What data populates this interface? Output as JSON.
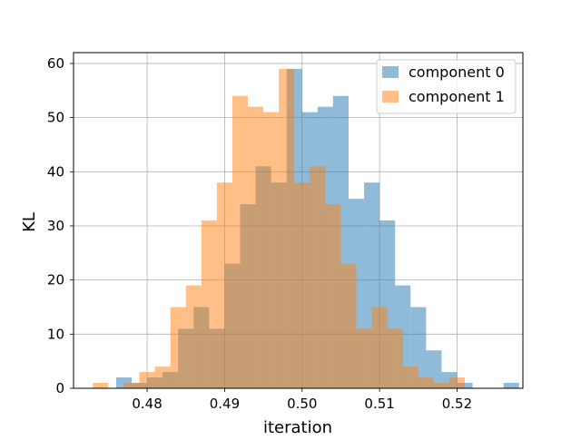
{
  "chart_data": {
    "type": "bar",
    "title": "",
    "xlabel": "iteration",
    "ylabel": "KL",
    "xlim": [
      0.4705,
      0.5285
    ],
    "ylim": [
      0,
      62
    ],
    "xticks": [
      0.48,
      0.49,
      0.5,
      0.51,
      0.52
    ],
    "xtick_labels": [
      "0.48",
      "0.49",
      "0.50",
      "0.51",
      "0.52"
    ],
    "yticks": [
      0,
      10,
      20,
      30,
      40,
      50,
      60
    ],
    "ytick_labels": [
      "0",
      "10",
      "20",
      "30",
      "40",
      "50",
      "60"
    ],
    "grid": true,
    "legend_position": "top-right",
    "series": [
      {
        "name": "component 0",
        "color": "#1f77b4",
        "opacity": 0.5,
        "bin_edges": [
          0.476,
          0.478,
          0.48,
          0.482,
          0.484,
          0.486,
          0.488,
          0.49,
          0.492,
          0.494,
          0.496,
          0.498,
          0.5,
          0.502,
          0.504,
          0.506,
          0.508,
          0.51,
          0.512,
          0.514,
          0.516,
          0.518,
          0.52,
          0.522,
          0.524,
          0.526,
          0.528
        ],
        "values": [
          2,
          1,
          2,
          3,
          11,
          15,
          11,
          23,
          34,
          41,
          38,
          59,
          51,
          52,
          54,
          35,
          38,
          31,
          19,
          15,
          7,
          3,
          1,
          0,
          0,
          1
        ]
      },
      {
        "name": "component 1",
        "color": "#ff7f0e",
        "opacity": 0.5,
        "bin_edges": [
          0.473,
          0.475,
          0.477,
          0.479,
          0.481,
          0.483,
          0.485,
          0.487,
          0.489,
          0.491,
          0.493,
          0.495,
          0.497,
          0.499,
          0.501,
          0.503,
          0.505,
          0.507,
          0.509,
          0.511,
          0.513,
          0.515,
          0.517,
          0.519,
          0.521,
          0.523
        ],
        "values": [
          1,
          0,
          1,
          3,
          4,
          15,
          19,
          31,
          38,
          54,
          52,
          51,
          59,
          38,
          41,
          34,
          23,
          11,
          15,
          11,
          4,
          2,
          1,
          2,
          0
        ]
      }
    ]
  }
}
